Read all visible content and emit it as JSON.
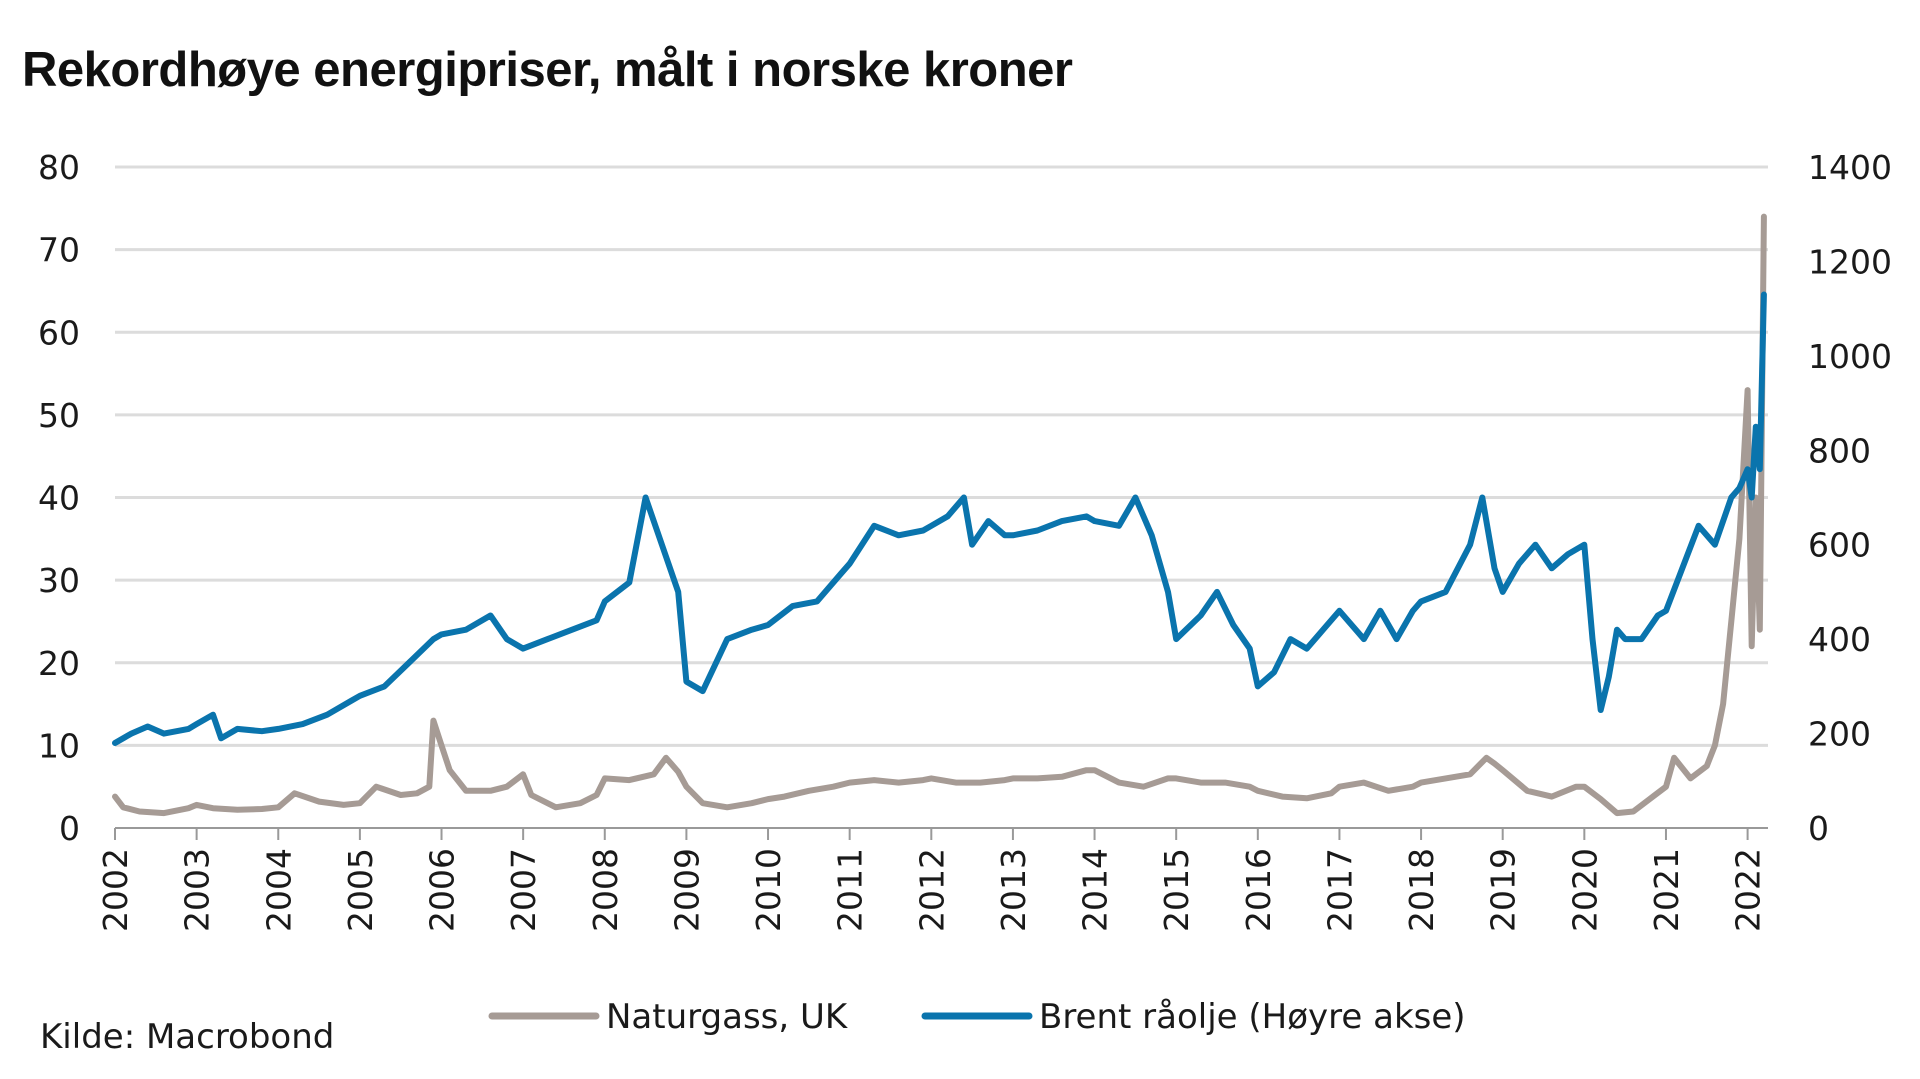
{
  "page": {
    "title": "Rekordhøye energipriser, målt i norske kroner"
  },
  "source": "Kilde: Macrobond",
  "colors": {
    "natural_gas": "#a69b95",
    "brent": "#0a74ad",
    "grid": "#dcdcdc",
    "axis": "#999999"
  },
  "chart_data": {
    "type": "line",
    "title": "Rekordhøye energipriser, målt i norske kroner",
    "grid": true,
    "legend_position": "bottom-center",
    "x_axis": {
      "range": [
        2002,
        2022.25
      ],
      "tick_labels": [
        "2002",
        "2003",
        "2004",
        "2005",
        "2006",
        "2007",
        "2008",
        "2009",
        "2010",
        "2011",
        "2012",
        "2013",
        "2014",
        "2015",
        "2016",
        "2017",
        "2018",
        "2019",
        "2020",
        "2021",
        "2022"
      ],
      "tick_values": [
        2002,
        2003,
        2004,
        2005,
        2006,
        2007,
        2008,
        2009,
        2010,
        2011,
        2012,
        2013,
        2014,
        2015,
        2016,
        2017,
        2018,
        2019,
        2020,
        2021,
        2022
      ]
    },
    "y_left": {
      "range": [
        0,
        80
      ],
      "ticks": [
        0,
        10,
        20,
        30,
        40,
        50,
        60,
        70,
        80
      ],
      "tick_labels": [
        "0",
        "10",
        "20",
        "30",
        "40",
        "50",
        "60",
        "70",
        "80"
      ]
    },
    "y_right": {
      "range": [
        0,
        1400
      ],
      "ticks": [
        0,
        200,
        400,
        600,
        800,
        1000,
        1200,
        1400
      ],
      "tick_labels": [
        "0",
        "200",
        "400",
        "600",
        "800",
        "1000",
        "1200",
        "1400"
      ]
    },
    "series": [
      {
        "name": "Naturgass, UK",
        "axis": "left",
        "color": "#a69b95",
        "x": [
          2002.0,
          2002.1,
          2002.3,
          2002.6,
          2002.9,
          2003.0,
          2003.2,
          2003.5,
          2003.8,
          2004.0,
          2004.2,
          2004.5,
          2004.8,
          2005.0,
          2005.2,
          2005.5,
          2005.7,
          2005.85,
          2005.9,
          2006.0,
          2006.1,
          2006.3,
          2006.6,
          2006.8,
          2007.0,
          2007.1,
          2007.4,
          2007.7,
          2007.9,
          2008.0,
          2008.3,
          2008.6,
          2008.75,
          2008.9,
          2009.0,
          2009.2,
          2009.5,
          2009.8,
          2010.0,
          2010.2,
          2010.5,
          2010.8,
          2011.0,
          2011.3,
          2011.6,
          2011.9,
          2012.0,
          2012.3,
          2012.6,
          2012.9,
          2013.0,
          2013.3,
          2013.6,
          2013.9,
          2014.0,
          2014.3,
          2014.6,
          2014.9,
          2015.0,
          2015.3,
          2015.6,
          2015.9,
          2016.0,
          2016.3,
          2016.6,
          2016.9,
          2017.0,
          2017.3,
          2017.6,
          2017.9,
          2018.0,
          2018.3,
          2018.6,
          2018.8,
          2018.9,
          2019.0,
          2019.3,
          2019.6,
          2019.9,
          2020.0,
          2020.2,
          2020.4,
          2020.6,
          2020.8,
          2021.0,
          2021.1,
          2021.3,
          2021.5,
          2021.6,
          2021.7,
          2021.8,
          2021.9,
          2022.0,
          2022.05,
          2022.1,
          2022.15,
          2022.2
        ],
        "values": [
          3.8,
          2.5,
          2,
          1.8,
          2.4,
          2.8,
          2.4,
          2.2,
          2.3,
          2.5,
          4.2,
          3.2,
          2.8,
          3.0,
          5.0,
          4.0,
          4.2,
          5.0,
          13.0,
          10.0,
          7.0,
          4.5,
          4.5,
          5.0,
          6.5,
          4.0,
          2.5,
          3.0,
          4.0,
          6.0,
          5.8,
          6.5,
          8.5,
          6.8,
          5.0,
          3.0,
          2.5,
          3.0,
          3.5,
          3.8,
          4.5,
          5.0,
          5.5,
          5.8,
          5.5,
          5.8,
          6.0,
          5.5,
          5.5,
          5.8,
          6.0,
          6.0,
          6.2,
          7.0,
          7.0,
          5.5,
          5.0,
          6.0,
          6.0,
          5.5,
          5.5,
          5.0,
          4.5,
          3.8,
          3.6,
          4.2,
          5.0,
          5.5,
          4.5,
          5.0,
          5.5,
          6.0,
          6.5,
          8.5,
          7.8,
          7.0,
          4.5,
          3.8,
          5.0,
          5.0,
          3.5,
          1.8,
          2.0,
          3.5,
          5.0,
          8.5,
          6.0,
          7.5,
          10.0,
          15.0,
          25.0,
          35.0,
          53.0,
          22.0,
          40.0,
          24.0,
          74.0
        ]
      },
      {
        "name": "Brent råolje (Høyre akse)",
        "axis": "right",
        "color": "#0a74ad",
        "x": [
          2002.0,
          2002.2,
          2002.4,
          2002.6,
          2002.9,
          2003.0,
          2003.2,
          2003.3,
          2003.5,
          2003.8,
          2004.0,
          2004.3,
          2004.6,
          2004.9,
          2005.0,
          2005.3,
          2005.6,
          2005.9,
          2006.0,
          2006.3,
          2006.6,
          2006.8,
          2007.0,
          2007.3,
          2007.6,
          2007.9,
          2008.0,
          2008.3,
          2008.5,
          2008.7,
          2008.9,
          2009.0,
          2009.2,
          2009.5,
          2009.8,
          2010.0,
          2010.3,
          2010.6,
          2010.9,
          2011.0,
          2011.3,
          2011.6,
          2011.9,
          2012.0,
          2012.2,
          2012.4,
          2012.5,
          2012.7,
          2012.9,
          2013.0,
          2013.3,
          2013.6,
          2013.9,
          2014.0,
          2014.3,
          2014.5,
          2014.7,
          2014.9,
          2015.0,
          2015.3,
          2015.5,
          2015.7,
          2015.9,
          2016.0,
          2016.2,
          2016.4,
          2016.6,
          2016.8,
          2017.0,
          2017.3,
          2017.5,
          2017.7,
          2017.9,
          2018.0,
          2018.3,
          2018.6,
          2018.75,
          2018.9,
          2019.0,
          2019.2,
          2019.4,
          2019.6,
          2019.8,
          2020.0,
          2020.1,
          2020.2,
          2020.3,
          2020.4,
          2020.5,
          2020.7,
          2020.9,
          2021.0,
          2021.2,
          2021.4,
          2021.6,
          2021.8,
          2021.9,
          2022.0,
          2022.05,
          2022.1,
          2022.15,
          2022.2
        ],
        "values": [
          180,
          200,
          215,
          200,
          210,
          220,
          240,
          190,
          210,
          205,
          210,
          220,
          240,
          270,
          280,
          300,
          350,
          400,
          410,
          420,
          450,
          400,
          380,
          400,
          420,
          440,
          480,
          520,
          700,
          600,
          500,
          310,
          290,
          400,
          420,
          430,
          470,
          480,
          540,
          560,
          640,
          620,
          630,
          640,
          660,
          700,
          600,
          650,
          620,
          620,
          630,
          650,
          660,
          650,
          640,
          700,
          620,
          500,
          400,
          450,
          500,
          430,
          380,
          300,
          330,
          400,
          380,
          420,
          460,
          400,
          460,
          400,
          460,
          480,
          500,
          600,
          700,
          550,
          500,
          560,
          600,
          550,
          580,
          600,
          400,
          250,
          320,
          420,
          400,
          400,
          450,
          460,
          550,
          640,
          600,
          700,
          720,
          760,
          700,
          850,
          760,
          1130
        ]
      }
    ]
  },
  "legend": [
    {
      "label": "Naturgass, UK",
      "color": "#a69b95"
    },
    {
      "label": "Brent råolje (Høyre akse)",
      "color": "#0a74ad"
    }
  ]
}
